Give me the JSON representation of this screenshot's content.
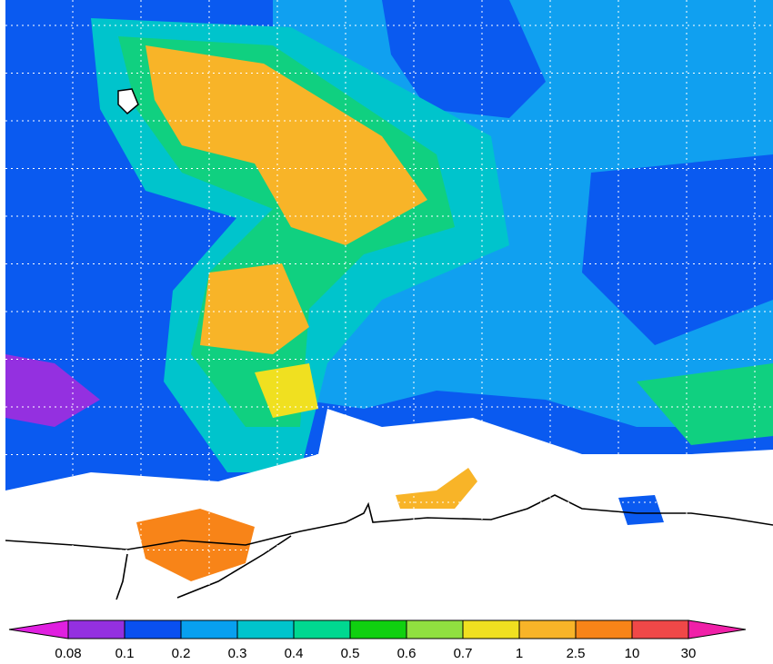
{
  "colorbar": {
    "labels": [
      "0.08",
      "0.1",
      "0.2",
      "0.3",
      "0.4",
      "0.5",
      "0.6",
      "0.7",
      "1",
      "2.5",
      "10",
      "30"
    ],
    "colors": [
      "#e020e0",
      "#9430e0",
      "#0a50f0",
      "#08a0f0",
      "#00c4cc",
      "#00d890",
      "#10d010",
      "#90e040",
      "#f0e020",
      "#f8b428",
      "#f88418",
      "#f04848",
      "#f020a8"
    ]
  }
}
